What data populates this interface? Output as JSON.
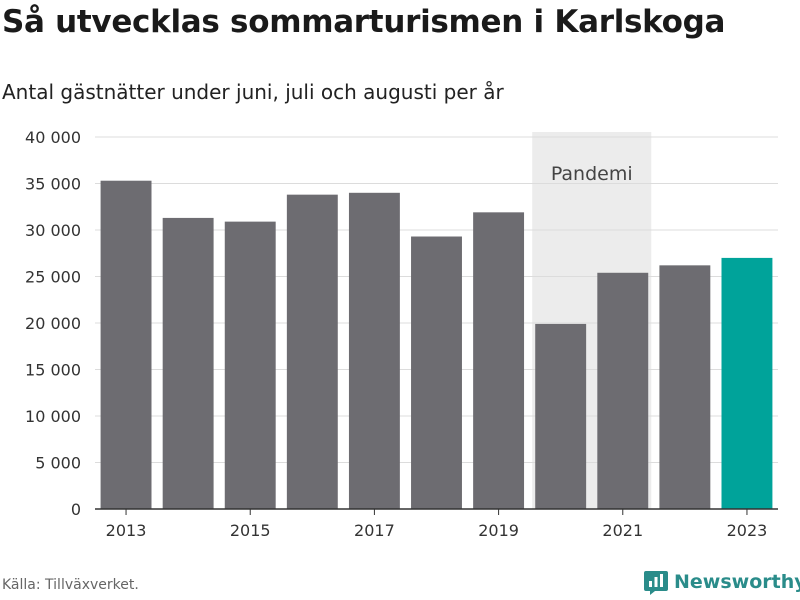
{
  "title": "Så utvecklas sommarturismen i Karlskoga",
  "subtitle": "Antal gästnätter under juni, juli och augusti per år",
  "source": "Källa: Tillväxverket.",
  "brand": {
    "name": "Newsworthy",
    "icon": "newsworthy-logo-icon",
    "color": "#2a8c8a"
  },
  "chart_data": {
    "type": "bar",
    "title": "Så utvecklas sommarturismen i Karlskoga",
    "subtitle": "Antal gästnätter under juni, juli och augusti per år",
    "categories": [
      "2013",
      "2014",
      "2015",
      "2016",
      "2017",
      "2018",
      "2019",
      "2020",
      "2021",
      "2022",
      "2023"
    ],
    "values": [
      35300,
      31300,
      30900,
      33800,
      34000,
      29300,
      31900,
      19900,
      25400,
      26200,
      27000
    ],
    "highlight_index": 10,
    "xlabel": "",
    "ylabel": "",
    "ylim": [
      0,
      40000
    ],
    "yticks": [
      0,
      5000,
      10000,
      15000,
      20000,
      25000,
      30000,
      35000,
      40000
    ],
    "ytick_labels": [
      "0",
      "5 000",
      "10 000",
      "15 000",
      "20 000",
      "25 000",
      "30 000",
      "35 000",
      "40 000"
    ],
    "xtick_labels": [
      "2013",
      "2015",
      "2017",
      "2019",
      "2021",
      "2023"
    ],
    "grid": true,
    "colors": {
      "bar": "#6d6c71",
      "highlight": "#00a39a",
      "band": "#ececec",
      "grid": "#dcdcdc",
      "axis": "#333333"
    },
    "annotations": [
      {
        "label": "Pandemi",
        "from": "2020",
        "to": "2021"
      }
    ]
  }
}
